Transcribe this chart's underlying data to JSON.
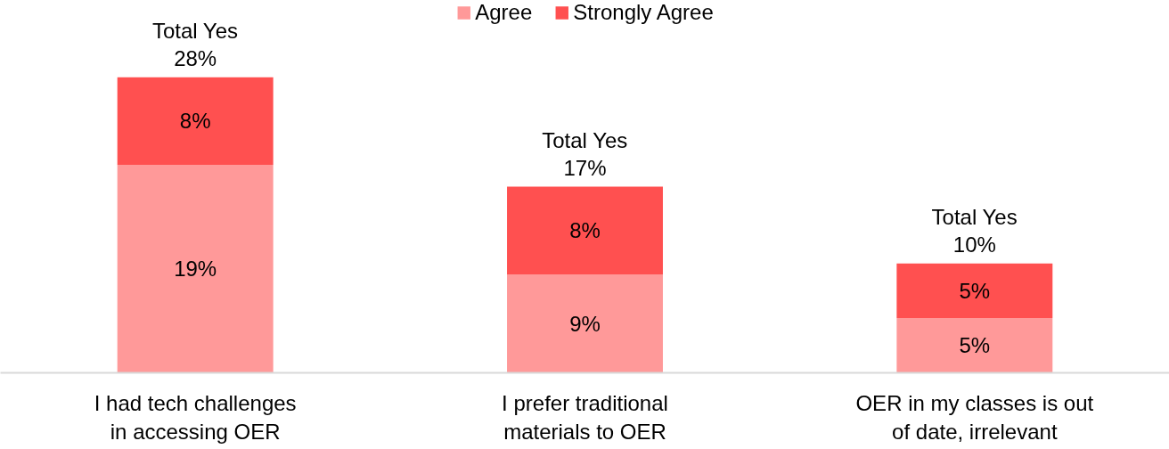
{
  "chart_data": {
    "type": "bar",
    "stacked": true,
    "legend": "top",
    "categories": [
      "I had tech challenges\nin accessing OER",
      "I prefer traditional\nmaterials to OER",
      "OER in my classes is out\nof date, irrelevant"
    ],
    "series": [
      {
        "name": "Agree",
        "color": "#ff9999",
        "values": [
          19,
          9,
          5
        ],
        "value_labels": [
          "19%",
          "9%",
          "5%"
        ]
      },
      {
        "name": "Strongly Agree",
        "color": "#ff5050",
        "values": [
          8,
          8,
          5
        ],
        "value_labels": [
          "8%",
          "8%",
          "5%"
        ]
      }
    ],
    "totals": [
      "Total Yes\n28%",
      "Total Yes\n17%",
      "Total Yes\n10%"
    ]
  }
}
